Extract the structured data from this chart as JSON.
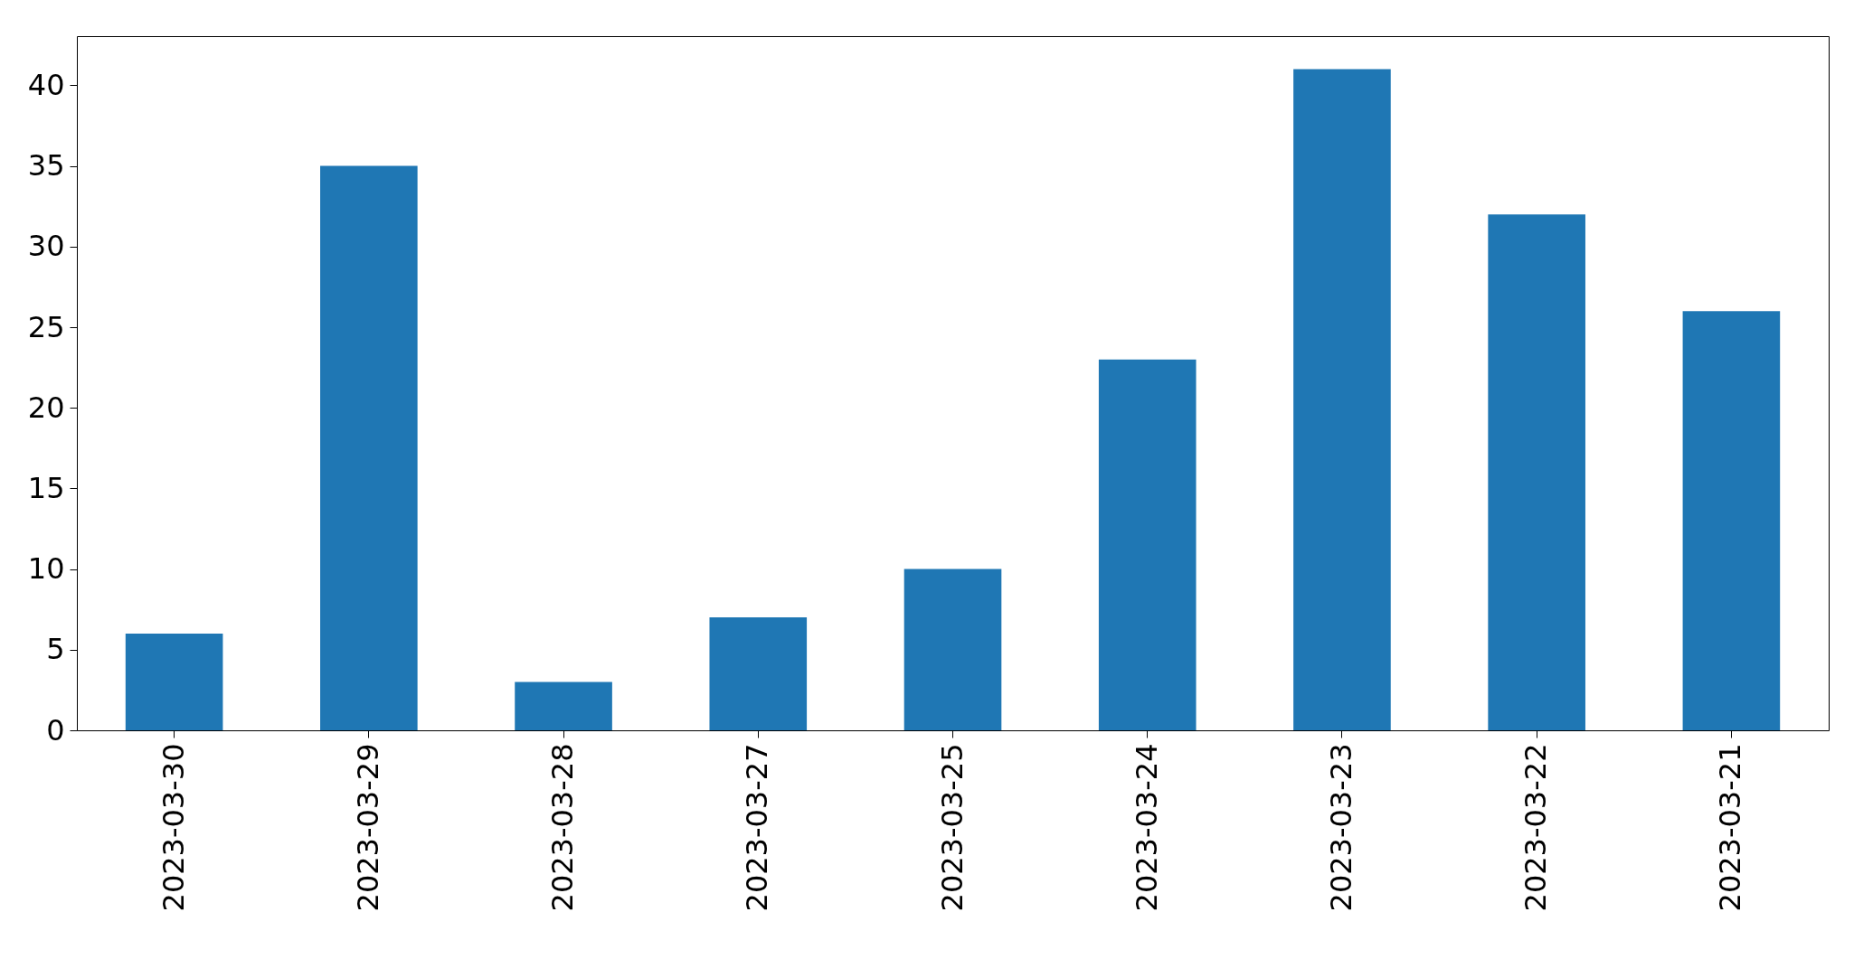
{
  "chart_data": {
    "type": "bar",
    "categories": [
      "2023-03-30",
      "2023-03-29",
      "2023-03-28",
      "2023-03-27",
      "2023-03-25",
      "2023-03-24",
      "2023-03-23",
      "2023-03-22",
      "2023-03-21"
    ],
    "values": [
      6,
      35,
      3,
      7,
      10,
      23,
      41,
      32,
      26
    ],
    "color": "#1f77b4",
    "ylim": [
      0,
      43.05
    ],
    "yticks": [
      0,
      5,
      10,
      15,
      20,
      25,
      30,
      35,
      40
    ],
    "grid": false
  }
}
